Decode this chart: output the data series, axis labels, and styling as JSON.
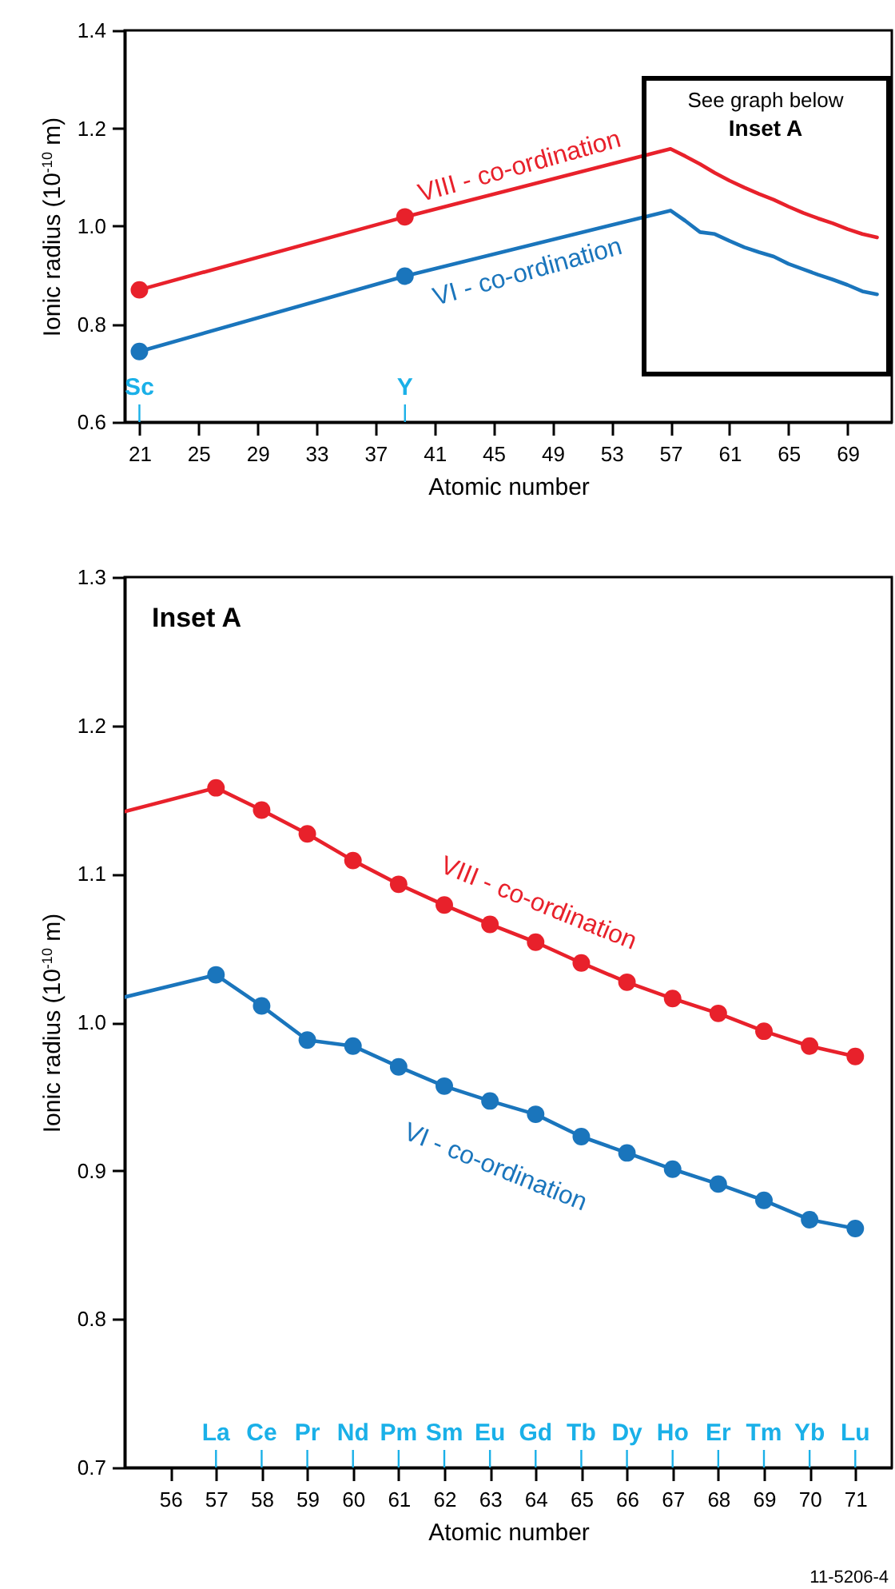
{
  "chart_data": [
    {
      "type": "line",
      "xlabel": "Atomic number",
      "ylabel": "Ionic radius (10$^{-10}$ m)",
      "xlim": [
        20,
        72
      ],
      "ylim": [
        0.6,
        1.4
      ],
      "xticks": [
        21,
        25,
        29,
        33,
        37,
        41,
        45,
        49,
        53,
        57,
        61,
        65,
        69
      ],
      "yticks": [
        0.6,
        0.8,
        {
          "value": 1,
          "label": "1.0"
        },
        1.2,
        1.4
      ],
      "series": [
        {
          "name": "VIII - co-ordination",
          "color": "#e8212b",
          "type": "line",
          "marker": "none",
          "x": [
            21,
            39,
            57,
            58,
            59,
            60,
            61,
            62,
            63,
            64,
            65,
            66,
            67,
            68,
            69,
            70,
            71
          ],
          "values": [
            0.87,
            1.019,
            1.158,
            1.143,
            1.127,
            1.109,
            1.093,
            1.079,
            1.066,
            1.054,
            1.04,
            1.027,
            1.016,
            1.006,
            0.994,
            0.984,
            0.977
          ]
        },
        {
          "color": "#e8212b",
          "type": "scatter",
          "marker": "circle",
          "x": [
            21,
            39
          ],
          "values": [
            0.87,
            1.019
          ]
        },
        {
          "name": "VI - co-ordination",
          "color": "#1a75bc",
          "type": "line",
          "marker": "none",
          "x": [
            21,
            39,
            57,
            58,
            59,
            60,
            61,
            62,
            63,
            64,
            65,
            66,
            67,
            68,
            69,
            70,
            71
          ],
          "values": [
            0.744,
            0.898,
            1.032,
            1.011,
            0.988,
            0.984,
            0.97,
            0.957,
            0.947,
            0.938,
            0.923,
            0.912,
            0.901,
            0.891,
            0.88,
            0.867,
            0.861
          ]
        },
        {
          "color": "#1a75bc",
          "type": "scatter",
          "marker": "circle",
          "x": [
            21,
            39
          ],
          "values": [
            0.744,
            0.898
          ]
        }
      ],
      "annotations": [
        "See graph below",
        "Inset A",
        "Sc",
        "Y"
      ]
    },
    {
      "type": "line",
      "xlabel": "Atomic number",
      "ylabel": "Ionic radius (10$^{-10}$ m)",
      "xlim": [
        55,
        71.8
      ],
      "ylim": [
        0.7,
        1.3
      ],
      "xticks": [
        56,
        57,
        58,
        59,
        60,
        61,
        62,
        63,
        64,
        65,
        66,
        67,
        68,
        69,
        70,
        71
      ],
      "yticks": [
        0.7,
        0.8,
        0.9,
        {
          "value": 1,
          "label": "1.0"
        },
        1.1,
        1.2,
        1.3
      ],
      "series": [
        {
          "name": "VIII - co-ordination",
          "color": "#e8212b",
          "type": "line",
          "marker": "none",
          "x": [
            55,
            57,
            58,
            59,
            60,
            61,
            62,
            63,
            64,
            65,
            66,
            67,
            68,
            69,
            70,
            71
          ],
          "values": [
            1.142,
            1.158,
            1.143,
            1.127,
            1.109,
            1.093,
            1.079,
            1.066,
            1.054,
            1.04,
            1.027,
            1.016,
            1.006,
            0.994,
            0.984,
            0.977
          ]
        },
        {
          "color": "#e8212b",
          "type": "scatter",
          "marker": "circle",
          "x": [
            57,
            58,
            59,
            60,
            61,
            62,
            63,
            64,
            65,
            66,
            67,
            68,
            69,
            70,
            71
          ],
          "values": [
            1.158,
            1.143,
            1.127,
            1.109,
            1.093,
            1.079,
            1.066,
            1.054,
            1.04,
            1.027,
            1.016,
            1.006,
            0.994,
            0.984,
            0.977
          ]
        },
        {
          "name": "VI - co-ordination",
          "color": "#1a75bc",
          "type": "line",
          "marker": "none",
          "x": [
            55,
            57,
            58,
            59,
            60,
            61,
            62,
            63,
            64,
            65,
            66,
            67,
            68,
            69,
            70,
            71
          ],
          "values": [
            1.017,
            1.032,
            1.011,
            0.988,
            0.984,
            0.97,
            0.957,
            0.947,
            0.938,
            0.923,
            0.912,
            0.901,
            0.891,
            0.88,
            0.867,
            0.861
          ]
        },
        {
          "color": "#1a75bc",
          "type": "scatter",
          "marker": "circle",
          "x": [
            57,
            58,
            59,
            60,
            61,
            62,
            63,
            64,
            65,
            66,
            67,
            68,
            69,
            70,
            71
          ],
          "values": [
            1.032,
            1.011,
            0.988,
            0.984,
            0.97,
            0.957,
            0.947,
            0.938,
            0.923,
            0.912,
            0.901,
            0.891,
            0.88,
            0.867,
            0.861
          ]
        }
      ],
      "annotations": [
        "Inset A",
        "11-5206-4",
        "La",
        "Ce",
        "Pr",
        "Nd",
        "Pm",
        "Sm",
        "Eu",
        "Gd",
        "Tb",
        "Dy",
        "Ho",
        "Er",
        "Tm",
        "Yb",
        "Lu"
      ]
    }
  ]
}
